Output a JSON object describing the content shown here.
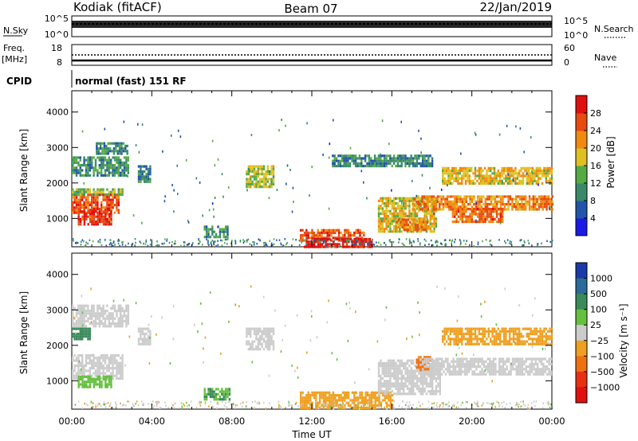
{
  "header": {
    "station": "Kodiak (fitACF)",
    "beam": "Beam 07",
    "date": "22/Jan/2019"
  },
  "params": {
    "nsky_label": "N.Sky",
    "nsky_ticks": [
      "10^5",
      "10^0"
    ],
    "nsearch_label": "N.Search",
    "nsearch_ticks": [
      "10^5",
      "10^0"
    ],
    "freq_label_1": "Freq.",
    "freq_label_2": "[MHz]",
    "freq_ticks": [
      "18",
      "8"
    ],
    "nave_label": "Nave",
    "nave_ticks": [
      "60",
      "0"
    ],
    "cpid_label": "CPID",
    "cpid_text": "normal (fast) 151 RF"
  },
  "axes": {
    "x_ticks": [
      "00:00",
      "04:00",
      "08:00",
      "12:00",
      "16:00",
      "20:00",
      "00:00"
    ],
    "xlabel": "Time UT",
    "ylabel": "Slant Range [km]",
    "y_ticks": [
      "1000",
      "2000",
      "3000",
      "4000"
    ]
  },
  "power_colorbar": {
    "label": "Power [dB]",
    "ticks": [
      "4",
      "8",
      "12",
      "16",
      "20",
      "24",
      "28"
    ],
    "colors": [
      "#1a1ae6",
      "#2255aa",
      "#3a8a6a",
      "#55aa44",
      "#e0c020",
      "#f08a10",
      "#e84a10",
      "#e01010"
    ]
  },
  "velocity_colorbar": {
    "label": "Velocity [m s⁻¹]",
    "ticks": [
      "1000",
      "500",
      "100",
      "25",
      "−25",
      "−100",
      "−500",
      "−1000"
    ],
    "colors": [
      "#1a3aa8",
      "#2c6a9a",
      "#3a8a5a",
      "#66c040",
      "#cccccc",
      "#f0a020",
      "#f07010",
      "#e83010",
      "#e01010"
    ]
  },
  "chart_data": [
    {
      "type": "heatmap",
      "name_hint": "power",
      "xlabel": "Time UT",
      "ylabel": "Slant Range [km]",
      "x_ticks": [
        "00:00",
        "04:00",
        "08:00",
        "12:00",
        "16:00",
        "20:00",
        "00:00"
      ],
      "xlim_hours": [
        0,
        24
      ],
      "ylim_km": [
        200,
        4600
      ],
      "colorbar_label": "Power [dB]",
      "color_range": [
        0,
        30
      ],
      "regions": [
        {
          "t0": 0.0,
          "t1": 2.3,
          "r0": 1150,
          "r1": 1700,
          "value": 24
        },
        {
          "t0": 0.3,
          "t1": 2.0,
          "r0": 800,
          "r1": 1300,
          "value": 26
        },
        {
          "t0": 0.0,
          "t1": 2.5,
          "r0": 1650,
          "r1": 1850,
          "value": 14
        },
        {
          "t0": 0.0,
          "t1": 2.8,
          "r0": 2200,
          "r1": 2750,
          "value": 10
        },
        {
          "t0": 1.2,
          "t1": 2.8,
          "r0": 2850,
          "r1": 3150,
          "value": 9
        },
        {
          "t0": 3.3,
          "t1": 3.9,
          "r0": 2000,
          "r1": 2500,
          "value": 8
        },
        {
          "t0": 6.6,
          "t1": 7.8,
          "r0": 500,
          "r1": 800,
          "value": 10
        },
        {
          "t0": 8.7,
          "t1": 10.1,
          "r0": 1900,
          "r1": 2500,
          "value": 15
        },
        {
          "t0": 11.4,
          "t1": 14.6,
          "r0": 400,
          "r1": 700,
          "value": 24
        },
        {
          "t0": 11.6,
          "t1": 15.0,
          "r0": 220,
          "r1": 450,
          "value": 29
        },
        {
          "t0": 15.3,
          "t1": 18.2,
          "r0": 600,
          "r1": 1600,
          "value": 17
        },
        {
          "t0": 16.2,
          "t1": 17.8,
          "r0": 650,
          "r1": 1000,
          "value": 22
        },
        {
          "t0": 17.0,
          "t1": 24.0,
          "r0": 1250,
          "r1": 1650,
          "value": 21
        },
        {
          "t0": 19.0,
          "t1": 21.5,
          "r0": 900,
          "r1": 1300,
          "value": 23
        },
        {
          "t0": 18.5,
          "t1": 24.0,
          "r0": 2000,
          "r1": 2450,
          "value": 18
        },
        {
          "t0": 13.0,
          "t1": 18.0,
          "r0": 2450,
          "r1": 2800,
          "value": 9
        }
      ]
    },
    {
      "type": "heatmap",
      "name_hint": "velocity",
      "xlabel": "Time UT",
      "ylabel": "Slant Range [km]",
      "x_ticks": [
        "00:00",
        "04:00",
        "08:00",
        "12:00",
        "16:00",
        "20:00",
        "00:00"
      ],
      "xlim_hours": [
        0,
        24
      ],
      "ylim_km": [
        200,
        4600
      ],
      "colorbar_label": "Velocity [m s⁻¹]",
      "color_range": [
        -1000,
        1000
      ],
      "regions": [
        {
          "t0": 0.0,
          "t1": 2.5,
          "r0": 1100,
          "r1": 1750,
          "value": 0
        },
        {
          "t0": 0.3,
          "t1": 2.0,
          "r0": 800,
          "r1": 1150,
          "value": 60
        },
        {
          "t0": 0.0,
          "t1": 0.9,
          "r0": 2200,
          "r1": 2500,
          "value": 300
        },
        {
          "t0": 0.0,
          "t1": 2.8,
          "r0": 2550,
          "r1": 3150,
          "value": 0
        },
        {
          "t0": 3.3,
          "t1": 3.9,
          "r0": 2000,
          "r1": 2500,
          "value": 0
        },
        {
          "t0": 6.6,
          "t1": 7.9,
          "r0": 450,
          "r1": 800,
          "value": 100
        },
        {
          "t0": 8.7,
          "t1": 10.1,
          "r0": 1900,
          "r1": 2500,
          "value": 0
        },
        {
          "t0": 11.4,
          "t1": 16.0,
          "r0": 220,
          "r1": 700,
          "value": -60
        },
        {
          "t0": 15.3,
          "t1": 18.4,
          "r0": 650,
          "r1": 1600,
          "value": 0
        },
        {
          "t0": 17.2,
          "t1": 17.9,
          "r0": 1300,
          "r1": 1700,
          "value": -150
        },
        {
          "t0": 17.5,
          "t1": 24.0,
          "r0": 1150,
          "r1": 1650,
          "value": 0
        },
        {
          "t0": 18.5,
          "t1": 24.0,
          "r0": 2000,
          "r1": 2500,
          "value": -70
        }
      ]
    }
  ]
}
